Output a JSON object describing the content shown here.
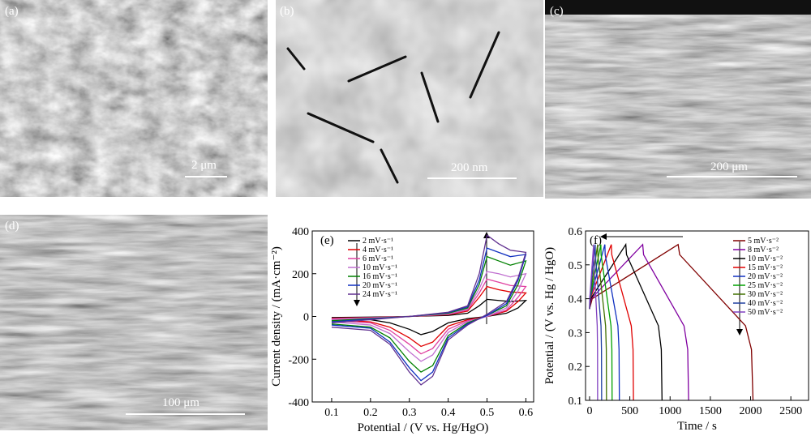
{
  "panels": [
    {
      "label": "(a)",
      "scale_bar": "2 μm"
    },
    {
      "label": "(b)",
      "scale_bar": "200 nm"
    },
    {
      "label": "(c)",
      "scale_bar": "200 μm"
    },
    {
      "label": "(d)",
      "scale_bar": "100 μm"
    }
  ],
  "chart_data": [
    {
      "type": "line",
      "panel_label": "(e)",
      "x_label": "Potential / (V vs. Hg/HgO)",
      "y_label": "Current density / (mA·cm⁻²)",
      "xlim": [
        0.05,
        0.62
      ],
      "xticks": [
        0.1,
        0.2,
        0.3,
        0.4,
        0.5,
        0.6
      ],
      "ylim": [
        -400,
        400
      ],
      "yticks": [
        -400,
        -200,
        0,
        200,
        400
      ],
      "series": [
        {
          "name": "2 mV·s⁻¹",
          "color": "#000000",
          "x": [
            0.1,
            0.2,
            0.3,
            0.4,
            0.45,
            0.48,
            0.5,
            0.53,
            0.56,
            0.6,
            0.58,
            0.55,
            0.5,
            0.45,
            0.4,
            0.36,
            0.33,
            0.3,
            0.25,
            0.2,
            0.1
          ],
          "values": [
            -5,
            -3,
            0,
            5,
            15,
            50,
            80,
            75,
            70,
            75,
            40,
            15,
            0,
            -10,
            -30,
            -70,
            -85,
            -60,
            -30,
            -15,
            -10
          ]
        },
        {
          "name": "4 mV·s⁻¹",
          "color": "#e00000",
          "x": [
            0.1,
            0.2,
            0.3,
            0.4,
            0.45,
            0.48,
            0.5,
            0.53,
            0.56,
            0.6,
            0.58,
            0.55,
            0.5,
            0.45,
            0.4,
            0.36,
            0.33,
            0.3,
            0.25,
            0.2,
            0.1
          ],
          "values": [
            -8,
            -5,
            0,
            8,
            25,
            90,
            140,
            125,
            115,
            110,
            70,
            25,
            0,
            -15,
            -45,
            -120,
            -140,
            -100,
            -50,
            -25,
            -15
          ]
        },
        {
          "name": "6 mV·s⁻¹",
          "color": "#e040a0",
          "x": [
            0.1,
            0.2,
            0.3,
            0.4,
            0.45,
            0.48,
            0.5,
            0.53,
            0.56,
            0.6,
            0.58,
            0.55,
            0.5,
            0.45,
            0.4,
            0.36,
            0.33,
            0.3,
            0.25,
            0.2,
            0.1
          ],
          "values": [
            -10,
            -6,
            0,
            10,
            30,
            110,
            175,
            160,
            145,
            140,
            90,
            30,
            0,
            -20,
            -60,
            -150,
            -175,
            -130,
            -65,
            -30,
            -20
          ]
        },
        {
          "name": "10 mV·s⁻¹",
          "color": "#c070d0",
          "x": [
            0.1,
            0.2,
            0.3,
            0.4,
            0.45,
            0.48,
            0.5,
            0.53,
            0.56,
            0.6,
            0.58,
            0.55,
            0.5,
            0.45,
            0.4,
            0.36,
            0.33,
            0.3,
            0.25,
            0.2,
            0.1
          ],
          "values": [
            -15,
            -8,
            0,
            12,
            35,
            130,
            210,
            200,
            185,
            200,
            120,
            40,
            0,
            -25,
            -75,
            -180,
            -210,
            -165,
            -80,
            -40,
            -25
          ]
        },
        {
          "name": "16 mV·s⁻¹",
          "color": "#008000",
          "x": [
            0.1,
            0.2,
            0.3,
            0.4,
            0.45,
            0.48,
            0.5,
            0.53,
            0.56,
            0.6,
            0.58,
            0.55,
            0.5,
            0.45,
            0.4,
            0.36,
            0.33,
            0.3,
            0.25,
            0.2,
            0.1
          ],
          "values": [
            -20,
            -10,
            0,
            15,
            40,
            150,
            280,
            260,
            240,
            260,
            150,
            50,
            5,
            -30,
            -90,
            -230,
            -260,
            -210,
            -100,
            -50,
            -35
          ]
        },
        {
          "name": "20 mV·s⁻¹",
          "color": "#1030c0",
          "x": [
            0.1,
            0.2,
            0.3,
            0.4,
            0.45,
            0.48,
            0.5,
            0.53,
            0.56,
            0.6,
            0.58,
            0.55,
            0.5,
            0.45,
            0.4,
            0.36,
            0.33,
            0.3,
            0.25,
            0.2,
            0.1
          ],
          "values": [
            -25,
            -12,
            0,
            18,
            45,
            170,
            320,
            300,
            280,
            290,
            170,
            60,
            5,
            -35,
            -100,
            -260,
            -300,
            -240,
            -120,
            -55,
            -40
          ]
        },
        {
          "name": "24 mV·s⁻¹",
          "color": "#603090",
          "x": [
            0.1,
            0.2,
            0.3,
            0.4,
            0.45,
            0.48,
            0.5,
            0.53,
            0.56,
            0.6,
            0.58,
            0.55,
            0.5,
            0.45,
            0.4,
            0.36,
            0.33,
            0.3,
            0.25,
            0.2,
            0.1
          ],
          "values": [
            -30,
            -15,
            0,
            20,
            50,
            200,
            380,
            340,
            310,
            300,
            180,
            70,
            10,
            -40,
            -110,
            -280,
            -320,
            -260,
            -130,
            -65,
            -50
          ]
        }
      ]
    },
    {
      "type": "line",
      "panel_label": "(f)",
      "x_label": "Time / s",
      "y_label": "Potential / (V vs. Hg / HgO)",
      "xlim": [
        -50,
        2720
      ],
      "xticks": [
        0,
        500,
        1000,
        1500,
        2000,
        2500
      ],
      "ylim": [
        0.1,
        0.6
      ],
      "yticks": [
        0.1,
        0.2,
        0.3,
        0.4,
        0.5,
        0.6
      ],
      "series": [
        {
          "name": "5 mV·s⁻²",
          "color": "#800000",
          "x": [
            0,
            33,
            1100,
            1119,
            1937,
            2011,
            2030
          ],
          "values": [
            0.37,
            0.4,
            0.56,
            0.53,
            0.32,
            0.25,
            0.1
          ]
        },
        {
          "name": "8 mV·s⁻²",
          "color": "#8000a0",
          "x": [
            0,
            20,
            660,
            671,
            1173,
            1219,
            1230
          ],
          "values": [
            0.37,
            0.4,
            0.56,
            0.53,
            0.32,
            0.25,
            0.1
          ]
        },
        {
          "name": "10 mV·s⁻²",
          "color": "#000000",
          "x": [
            0,
            14,
            450,
            459,
            855,
            891,
            900
          ],
          "values": [
            0.37,
            0.4,
            0.56,
            0.53,
            0.32,
            0.25,
            0.1
          ]
        },
        {
          "name": "15 mV·s⁻²",
          "color": "#e00000",
          "x": [
            0,
            8,
            270,
            276,
            518,
            540,
            545
          ],
          "values": [
            0.37,
            0.4,
            0.56,
            0.53,
            0.32,
            0.25,
            0.1
          ]
        },
        {
          "name": "20 mV·s⁻²",
          "color": "#1030c0",
          "x": [
            0,
            6,
            190,
            194,
            352,
            366,
            370
          ],
          "values": [
            0.37,
            0.4,
            0.56,
            0.53,
            0.32,
            0.25,
            0.1
          ]
        },
        {
          "name": "25 mV·s⁻²",
          "color": "#00a000",
          "x": [
            0,
            4,
            140,
            143,
            266,
            277,
            280
          ],
          "values": [
            0.37,
            0.4,
            0.56,
            0.53,
            0.32,
            0.25,
            0.1
          ]
        },
        {
          "name": "30 mV·s⁻²",
          "color": "#407000",
          "x": [
            0,
            3,
            100,
            102,
            199,
            208,
            210
          ],
          "values": [
            0.37,
            0.4,
            0.56,
            0.53,
            0.32,
            0.25,
            0.1
          ]
        },
        {
          "name": "40 mV·s⁻²",
          "color": "#2040a0",
          "x": [
            0,
            2,
            70,
            72,
            142,
            148,
            150
          ],
          "values": [
            0.37,
            0.4,
            0.56,
            0.53,
            0.32,
            0.25,
            0.1
          ]
        },
        {
          "name": "50 mV·s⁻²",
          "color": "#8040c0",
          "x": [
            0,
            2,
            50,
            51,
            95,
            99,
            100
          ],
          "values": [
            0.37,
            0.4,
            0.56,
            0.53,
            0.32,
            0.25,
            0.1
          ]
        }
      ]
    }
  ]
}
